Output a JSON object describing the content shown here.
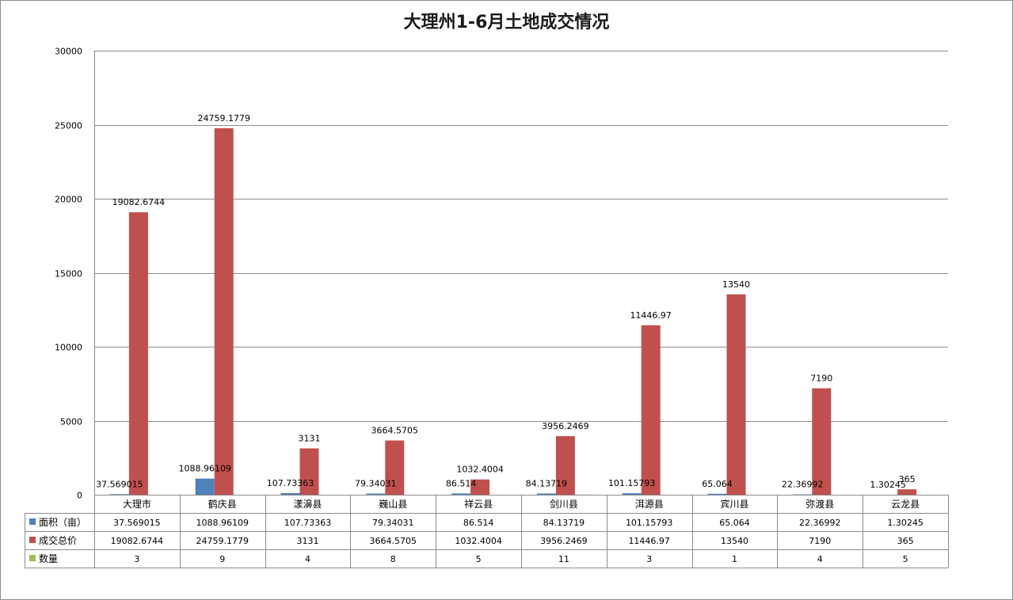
{
  "chart_data": {
    "type": "bar",
    "title": "大理州1-6月土地成交情况",
    "categories": [
      "大理市",
      "鹤庆县",
      "漾濞县",
      "巍山县",
      "祥云县",
      "剑川县",
      "洱源县",
      "宾川县",
      "弥渡县",
      "云龙县"
    ],
    "series": [
      {
        "name": "面积（亩）",
        "color": "#4f81bd",
        "values": [
          37.569015,
          1088.96109,
          107.73363,
          79.34031,
          86.514,
          84.13719,
          101.15793,
          65.064,
          22.36992,
          1.30245
        ],
        "labels": [
          "37.569015",
          "1088.96109",
          "107.73363",
          "79.34031",
          "86.514",
          "84.13719",
          "101.15793",
          "65.064",
          "22.36992",
          "1.30245"
        ]
      },
      {
        "name": "成交总价",
        "color": "#c0504d",
        "values": [
          19082.6744,
          24759.1779,
          3131,
          3664.5705,
          1032.4004,
          3956.2469,
          11446.97,
          13540,
          7190,
          365
        ],
        "labels": [
          "19082.6744",
          "24759.1779",
          "3131",
          "3664.5705",
          "1032.4004",
          "3956.2469",
          "11446.97",
          "13540",
          "7190",
          "365"
        ]
      },
      {
        "name": "数量",
        "color": "#9bbb59",
        "values": [
          3,
          9,
          4,
          8,
          5,
          11,
          3,
          1,
          4,
          5
        ],
        "labels": [
          "3",
          "9",
          "4",
          "8",
          "5",
          "11",
          "3",
          "1",
          "4",
          "5"
        ]
      }
    ],
    "ylim": [
      0,
      30000
    ],
    "yticks": [
      0,
      5000,
      10000,
      15000,
      20000,
      25000,
      30000
    ],
    "ytick_labels": [
      "0",
      "5000",
      "10000",
      "15000",
      "20000",
      "25000",
      "30000"
    ],
    "grid": true,
    "legend": "data-table"
  }
}
